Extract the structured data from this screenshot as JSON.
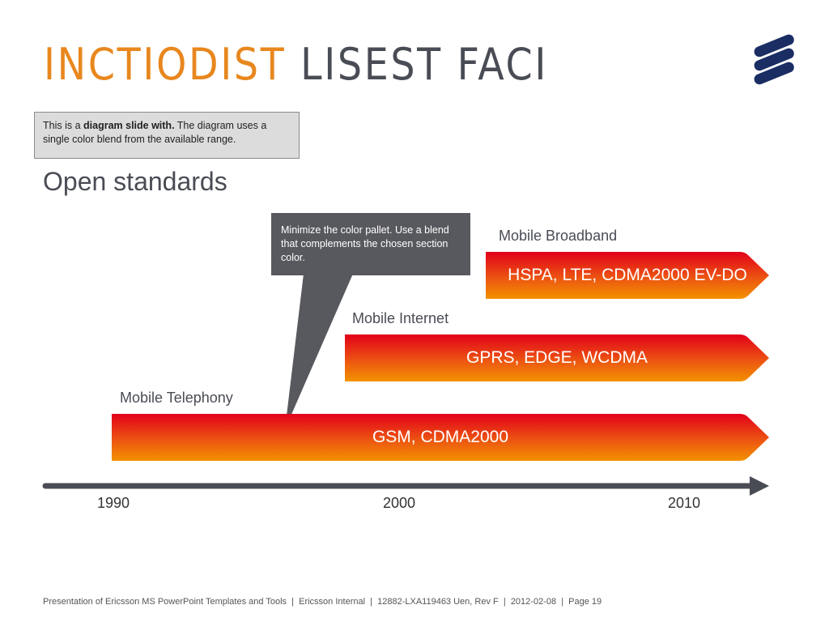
{
  "title": {
    "accent": "INCTIODIST",
    "rest": "LISEST FACI"
  },
  "logo": "ericsson-logo",
  "note": {
    "prefix": "This is a ",
    "bold": "diagram slide with.",
    "rest": " The diagram uses a single color blend from the available range."
  },
  "subtitle": "Open standards",
  "callout": "Minimize the color pallet. Use a blend that complements the chosen section color.",
  "bands": [
    {
      "label": "Mobile Broadband",
      "text": "HSPA, LTE, CDMA2000 EV-DO"
    },
    {
      "label": "Mobile Internet",
      "text": "GPRS, EDGE, WCDMA"
    },
    {
      "label": "Mobile Telephony",
      "text": "GSM, CDMA2000"
    }
  ],
  "years": [
    "1990",
    "2000",
    "2010"
  ],
  "colors": {
    "accent": "#e8871e",
    "dark": "#4a4c55",
    "band_top": "#e2001a",
    "band_bottom": "#f39200",
    "callout": "#58595e",
    "logo": "#1a2e64"
  },
  "footer": "Presentation of Ericsson MS PowerPoint Templates and Tools  |  Ericsson Internal  |  12882-LXA119463 Uen, Rev F  |  2012-02-08  |  Page 19"
}
